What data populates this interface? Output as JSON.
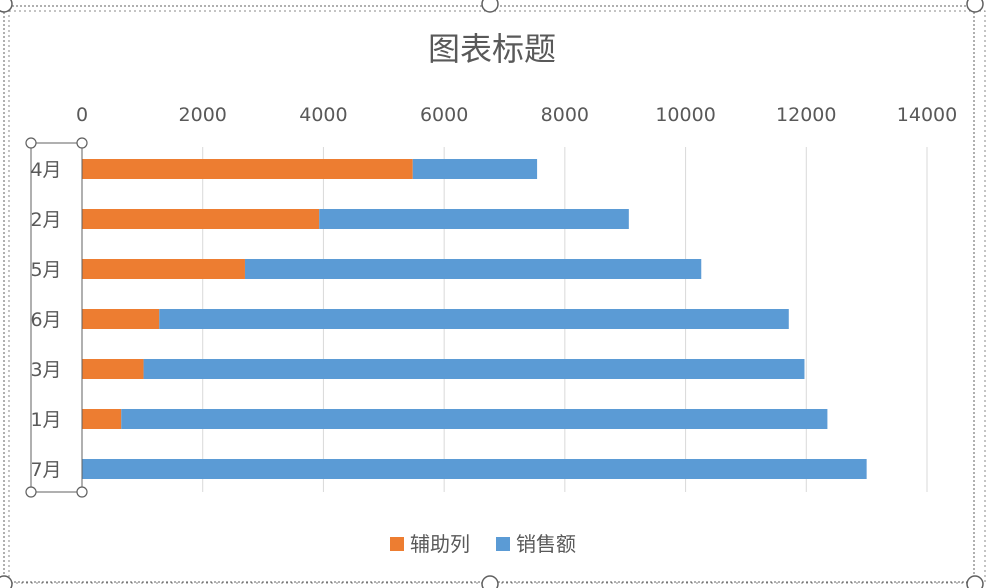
{
  "chart_data": {
    "type": "bar",
    "orientation": "horizontal",
    "stacked": true,
    "title": "图表标题",
    "categories": [
      "4月",
      "2月",
      "5月",
      "6月",
      "3月",
      "1月",
      "7月"
    ],
    "series": [
      {
        "name": "辅助列",
        "color": "#ed7d31",
        "values": [
          5480,
          3930,
          2700,
          1280,
          1020,
          650,
          0
        ]
      },
      {
        "name": "销售额",
        "color": "#5b9bd5",
        "values": [
          2060,
          5130,
          7560,
          10430,
          10950,
          11700,
          13000
        ]
      }
    ],
    "xticks": [
      "0",
      "2000",
      "4000",
      "6000",
      "8000",
      "10000",
      "12000",
      "14000"
    ],
    "xlim": [
      0,
      14000
    ],
    "axis_position": "top",
    "grid": true,
    "legend_position": "bottom"
  }
}
